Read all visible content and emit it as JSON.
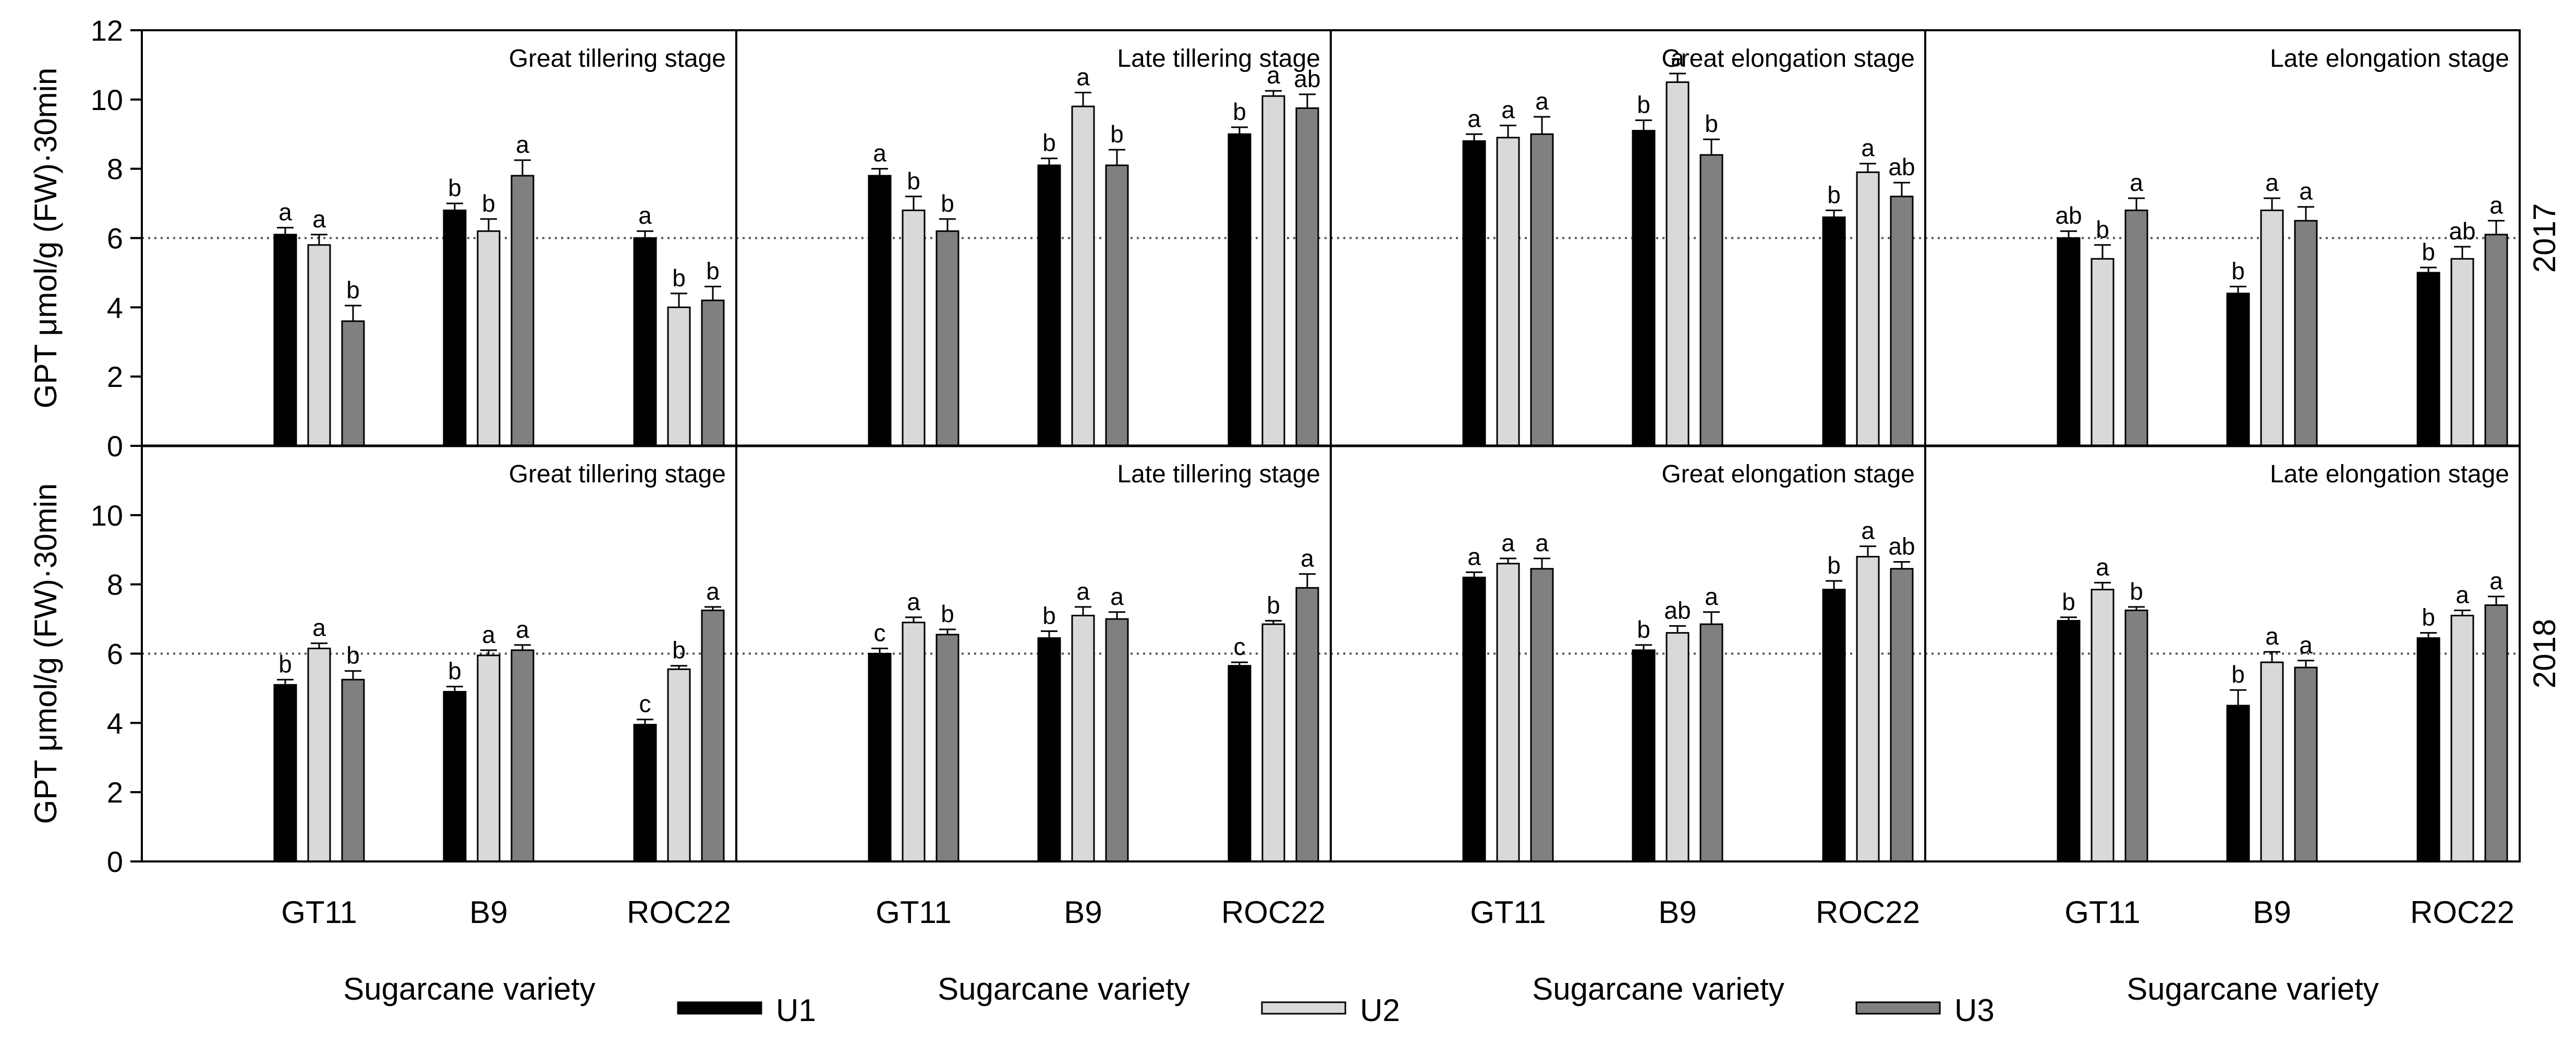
{
  "chart_data": {
    "type": "bar",
    "title": "",
    "ylabel": "GPT μmol/g (FW)·30min",
    "xlabel": "Sugarcane variety",
    "ylim": [
      0,
      12
    ],
    "yticks_top": [
      "0",
      "2",
      "4",
      "6",
      "8",
      "10",
      "12"
    ],
    "yticks_bottom": [
      "0",
      "2",
      "4",
      "6",
      "8",
      "10"
    ],
    "reference_line": 6,
    "categories": [
      "GT11",
      "B9",
      "ROC22"
    ],
    "series_names": [
      "U1",
      "U2",
      "U3"
    ],
    "series_colors": [
      "#000000",
      "#d9d9d9",
      "#808080"
    ],
    "years": [
      "2017",
      "2018"
    ],
    "panels": [
      {
        "year": "2017",
        "stage": "Great tillering stage",
        "series": [
          {
            "name": "U1",
            "values": [
              6.1,
              6.8,
              6.0
            ],
            "errors": [
              0.2,
              0.2,
              0.2
            ],
            "letters": [
              "a",
              "b",
              "a"
            ]
          },
          {
            "name": "U2",
            "values": [
              5.8,
              6.2,
              4.0
            ],
            "errors": [
              0.3,
              0.35,
              0.4
            ],
            "letters": [
              "a",
              "b",
              "b"
            ]
          },
          {
            "name": "U3",
            "values": [
              3.6,
              7.8,
              4.2
            ],
            "errors": [
              0.45,
              0.45,
              0.4
            ],
            "letters": [
              "b",
              "a",
              "b"
            ]
          }
        ]
      },
      {
        "year": "2017",
        "stage": "Late tillering stage",
        "series": [
          {
            "name": "U1",
            "values": [
              7.8,
              8.1,
              9.0
            ],
            "errors": [
              0.2,
              0.2,
              0.2
            ],
            "letters": [
              "a",
              "b",
              "b"
            ]
          },
          {
            "name": "U2",
            "values": [
              6.8,
              9.8,
              10.1
            ],
            "errors": [
              0.4,
              0.4,
              0.15
            ],
            "letters": [
              "b",
              "a",
              "a"
            ]
          },
          {
            "name": "U3",
            "values": [
              6.2,
              8.1,
              9.75
            ],
            "errors": [
              0.35,
              0.45,
              0.4
            ],
            "letters": [
              "b",
              "b",
              "ab"
            ]
          }
        ]
      },
      {
        "year": "2017",
        "stage": "Great elongation stage",
        "series": [
          {
            "name": "U1",
            "values": [
              8.8,
              9.1,
              6.6
            ],
            "errors": [
              0.2,
              0.3,
              0.2
            ],
            "letters": [
              "a",
              "b",
              "b"
            ]
          },
          {
            "name": "U2",
            "values": [
              8.9,
              10.5,
              7.9
            ],
            "errors": [
              0.35,
              0.25,
              0.25
            ],
            "letters": [
              "a",
              "a",
              "a"
            ]
          },
          {
            "name": "U3",
            "values": [
              9.0,
              8.4,
              7.2
            ],
            "errors": [
              0.5,
              0.45,
              0.4
            ],
            "letters": [
              "a",
              "b",
              "ab"
            ]
          }
        ]
      },
      {
        "year": "2017",
        "stage": "Late elongation stage",
        "series": [
          {
            "name": "U1",
            "values": [
              6.0,
              4.4,
              5.0
            ],
            "errors": [
              0.2,
              0.2,
              0.15
            ],
            "letters": [
              "ab",
              "b",
              "b"
            ]
          },
          {
            "name": "U2",
            "values": [
              5.4,
              6.8,
              5.4
            ],
            "errors": [
              0.4,
              0.35,
              0.35
            ],
            "letters": [
              "b",
              "a",
              "ab"
            ]
          },
          {
            "name": "U3",
            "values": [
              6.8,
              6.5,
              6.1
            ],
            "errors": [
              0.35,
              0.4,
              0.4
            ],
            "letters": [
              "a",
              "a",
              "a"
            ]
          }
        ]
      },
      {
        "year": "2018",
        "stage": "Great tillering stage",
        "series": [
          {
            "name": "U1",
            "values": [
              5.1,
              4.9,
              3.95
            ],
            "errors": [
              0.15,
              0.15,
              0.15
            ],
            "letters": [
              "b",
              "b",
              "c"
            ]
          },
          {
            "name": "U2",
            "values": [
              6.15,
              5.95,
              5.55
            ],
            "errors": [
              0.15,
              0.15,
              0.1
            ],
            "letters": [
              "a",
              "a",
              "b"
            ]
          },
          {
            "name": "U3",
            "values": [
              5.25,
              6.1,
              7.25
            ],
            "errors": [
              0.25,
              0.15,
              0.1
            ],
            "letters": [
              "b",
              "a",
              "a"
            ]
          }
        ]
      },
      {
        "year": "2018",
        "stage": "Late tillering stage",
        "series": [
          {
            "name": "U1",
            "values": [
              6.0,
              6.45,
              5.65
            ],
            "errors": [
              0.15,
              0.2,
              0.1
            ],
            "letters": [
              "c",
              "b",
              "c"
            ]
          },
          {
            "name": "U2",
            "values": [
              6.9,
              7.1,
              6.85
            ],
            "errors": [
              0.15,
              0.25,
              0.1
            ],
            "letters": [
              "a",
              "a",
              "b"
            ]
          },
          {
            "name": "U3",
            "values": [
              6.55,
              7.0,
              7.9
            ],
            "errors": [
              0.15,
              0.2,
              0.4
            ],
            "letters": [
              "b",
              "a",
              "a"
            ]
          }
        ]
      },
      {
        "year": "2018",
        "stage": "Great elongation stage",
        "series": [
          {
            "name": "U1",
            "values": [
              8.2,
              6.1,
              7.85
            ],
            "errors": [
              0.15,
              0.15,
              0.25
            ],
            "letters": [
              "a",
              "b",
              "b"
            ]
          },
          {
            "name": "U2",
            "values": [
              8.6,
              6.6,
              8.8
            ],
            "errors": [
              0.15,
              0.2,
              0.3
            ],
            "letters": [
              "a",
              "ab",
              "a"
            ]
          },
          {
            "name": "U3",
            "values": [
              8.45,
              6.85,
              8.45
            ],
            "errors": [
              0.3,
              0.35,
              0.2
            ],
            "letters": [
              "a",
              "a",
              "ab"
            ]
          }
        ]
      },
      {
        "year": "2018",
        "stage": "Late elongation stage",
        "series": [
          {
            "name": "U1",
            "values": [
              6.95,
              4.5,
              6.45
            ],
            "errors": [
              0.1,
              0.45,
              0.15
            ],
            "letters": [
              "b",
              "b",
              "b"
            ]
          },
          {
            "name": "U2",
            "values": [
              7.85,
              5.75,
              7.1
            ],
            "errors": [
              0.2,
              0.3,
              0.15
            ],
            "letters": [
              "a",
              "a",
              "a"
            ]
          },
          {
            "name": "U3",
            "values": [
              7.25,
              5.6,
              7.4
            ],
            "errors": [
              0.1,
              0.2,
              0.25
            ],
            "letters": [
              "b",
              "a",
              "a"
            ]
          }
        ]
      }
    ]
  }
}
